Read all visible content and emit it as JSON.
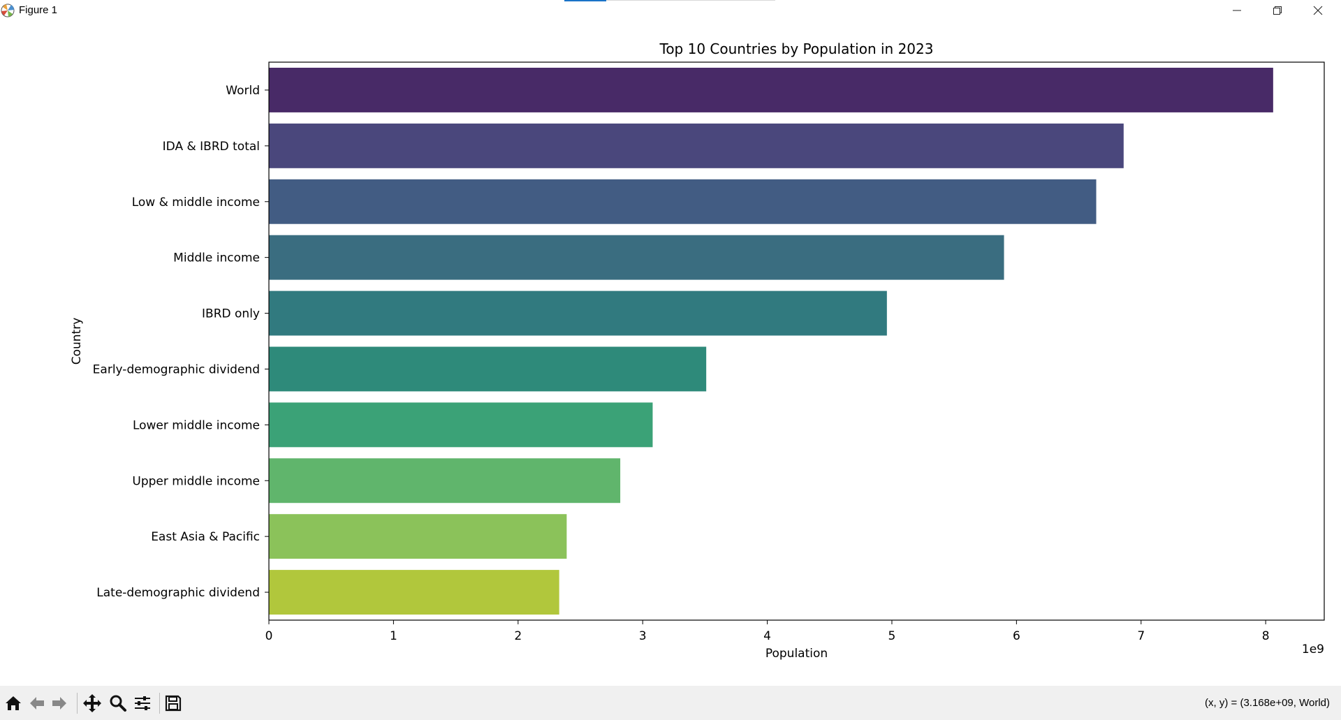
{
  "window": {
    "title": "Figure 1",
    "minimize_icon": "minimize-icon",
    "maximize_icon": "restore-icon",
    "close_icon": "close-icon"
  },
  "toolbar": {
    "buttons": [
      "home-icon",
      "back-arrow-icon",
      "forward-arrow-icon",
      "pan-icon",
      "zoom-icon",
      "configure-subplots-icon",
      "save-icon"
    ],
    "coords": "(x, y) = (3.168e+09, World)"
  },
  "chart_data": {
    "type": "bar",
    "orientation": "horizontal",
    "title": "Top 10 Countries by Population in 2023",
    "xlabel": "Population",
    "ylabel": "Country",
    "x_offset_label": "1e9",
    "xlim": [
      0,
      8.47
    ],
    "x_ticks": [
      0,
      1,
      2,
      3,
      4,
      5,
      6,
      7,
      8
    ],
    "x_tick_labels": [
      "0",
      "1",
      "2",
      "3",
      "4",
      "5",
      "6",
      "7",
      "8"
    ],
    "categories": [
      "World",
      "IDA & IBRD total",
      "Low & middle income",
      "Middle income",
      "IBRD only",
      "Early-demographic dividend",
      "Lower middle income",
      "Upper middle income",
      "East Asia & Pacific",
      "Late-demographic dividend"
    ],
    "values": [
      8.06,
      6.86,
      6.64,
      5.9,
      4.96,
      3.51,
      3.08,
      2.82,
      2.39,
      2.33
    ],
    "colors": [
      "#482a67",
      "#4a477c",
      "#425c83",
      "#3a6d80",
      "#317a7f",
      "#2e8a7a",
      "#3ba277",
      "#60b56c",
      "#8bc25a",
      "#b1c73c"
    ],
    "grid": false,
    "legend": "none"
  }
}
